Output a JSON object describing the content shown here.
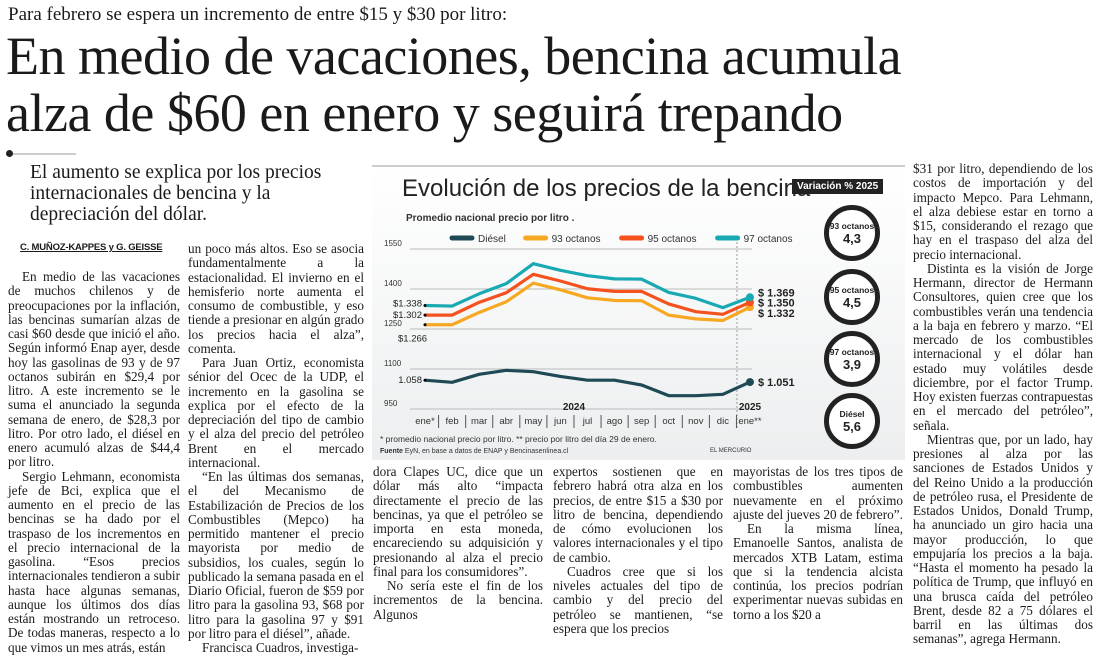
{
  "kicker": "Para febrero se espera un incremento de entre $15 y $30 por litro:",
  "headline": [
    "En medio de vacaciones, bencina acumula",
    "alza de $60 en enero y seguirá trepando"
  ],
  "deck": "El aumento se explica por los precios internacionales de bencina y la depreciación del dólar.",
  "byline": "C. MUÑOZ-KAPPES y G. GEISSE",
  "columns": {
    "col1": [
      "En medio de las vacaciones de muchos chilenos y de preocupaciones por la inflación, las bencinas sumarían alzas de casi $60 desde que inició el año. Según informó Enap ayer, desde hoy las gasolinas de 93 y de 97 octanos subirán en $29,4 por litro. A este incremento se le suma el anunciado la segunda semana de enero, de $28,3 por litro. Por otro lado, el diésel en enero acumuló alzas de $44,4 por litro.",
      "Sergio Lehmann, economista jefe de Bci, explica que el aumento en el precio de las bencinas se ha dado por el traspaso de los incrementos en el precio internacional de la gasolina. “Esos precios internacionales tendieron a subir hasta hace algunas semanas, aunque los últimos dos días están mostrando un retroceso. De todas maneras, respecto a lo que vimos un mes atrás, están"
    ],
    "col2": [
      "un poco más altos. Eso se asocia fundamentalmente a la estacionalidad. El invierno en el hemisferio norte aumenta el consumo de combustible, y eso tiende a presionar en algún grado los precios hacia el alza”, comenta.",
      "Para Juan Ortiz, economista sénior del Ocec de la UDP, el incremento en la gasolina se explica por el efecto de la depreciación del tipo de cambio y el alza del precio del petróleo Brent en el mercado internacional.",
      "“En las últimas dos semanas, el del Mecanismo de Estabilización de Precios de los Combustibles (Mepco) ha permitido mantener el precio mayorista por medio de subsidios, los cuales, según lo publicado la semana pasada en el Diario Oficial, fueron de $59 por litro para la gasolina 93, $68 por litro para la gasolina 97 y $91 por litro para el diésel”, añade.",
      "Francisca Cuadros, investiga-"
    ],
    "col3": [
      "dora Clapes UC, dice que un dólar más alto “impacta directamente el precio de las bencinas, ya que el petróleo se importa en esta moneda, encareciendo su adquisición y presionando al alza el precio final para los consumidores”.",
      "No sería este el fin de los incrementos de la bencina. Algunos"
    ],
    "col4": [
      "expertos sostienen que en febrero habrá otra alza en los precios, de entre $15 a $30 por litro de bencina, dependiendo de cómo evolucionen los valores internacionales y el tipo de cambio.",
      "Cuadros cree que si los niveles actuales del tipo de cambio y del precio del petróleo se mantienen, “se espera que los precios"
    ],
    "col5": [
      "mayoristas de los tres tipos de combustibles aumenten nuevamente en el próximo ajuste del jueves 20 de febrero”.",
      "En la misma línea, Emanoelle Santos, analista de mercados XTB Latam, estima que si la tendencia alcista continúa, los precios podrían experimentar nuevas subidas en torno a los $20 a"
    ],
    "col6": [
      "$31 por litro, dependiendo de los costos de importación y del impacto Mepco. Para Lehmann, el alza debiese estar en torno a $15, considerando el rezago que hay en el traspaso del alza del precio internacional.",
      "Distinta es la visión de Jorge Hermann, director de Hermann Consultores, quien cree que los combustibles verán una tendencia a la baja en febrero y marzo. “El mercado de los combustibles internacional y el dólar han estado muy volátiles desde diciembre, por el factor Trump. Hoy existen fuerzas contrapuestas en el mercado del petróleo”, señala.",
      "Mientras que, por un lado, hay presiones al alza por las sanciones de Estados Unidos y del Reino Unido a la producción de petróleo rusa, el Presidente de Estados Unidos, Donald Trump, ha anunciado un giro hacia una mayor producción, lo que empujaría los precios a la baja. “Hasta el momento ha pesado la política de Trump, que influyó en una brusca caída del petróleo Brent, desde 82 a 75 dólares el barril en las últimas dos semanas”, agrega Hermann."
    ]
  },
  "chart_data": {
    "type": "line",
    "title": "Evolución de los precios de la bencina",
    "subtitle": "Promedio nacional precio por litro .",
    "categories": [
      "ene*",
      "feb",
      "mar",
      "abr",
      "may",
      "jun",
      "jul",
      "ago",
      "sep",
      "oct",
      "nov",
      "dic",
      "ene**"
    ],
    "year_labels": [
      "2024",
      "2025"
    ],
    "yticks": [
      950,
      1100,
      1250,
      1400,
      1550
    ],
    "ylim": [
      950,
      1550
    ],
    "series": [
      {
        "name": "Diésel",
        "color": "#1f4a55",
        "values": [
          1058,
          1050,
          1080,
          1095,
          1090,
          1072,
          1058,
          1058,
          1040,
          1000,
          1000,
          1005,
          1051
        ]
      },
      {
        "name": "93 octanos",
        "color": "#f7a823",
        "values": [
          1266,
          1266,
          1312,
          1352,
          1422,
          1397,
          1367,
          1357,
          1356,
          1302,
          1288,
          1282,
          1332
        ]
      },
      {
        "name": "95 octanos",
        "color": "#f4511e",
        "values": [
          1302,
          1302,
          1350,
          1386,
          1455,
          1430,
          1401,
          1391,
          1391,
          1344,
          1315,
          1305,
          1350
        ]
      },
      {
        "name": "97 octanos",
        "color": "#19a9b3",
        "values": [
          1338,
          1336,
          1382,
          1420,
          1495,
          1470,
          1450,
          1438,
          1437,
          1387,
          1365,
          1330,
          1369
        ]
      }
    ],
    "start_labels": [
      "$1.338",
      "$1.302",
      "$1.266",
      "1.058"
    ],
    "end_labels": [
      "$ 1.369",
      "$ 1.350",
      "$ 1.332",
      "$ 1.051"
    ],
    "footnote": "* promedio nacional precio por litro. ** precio por litro del día 29 de enero.",
    "source_label": "Fuente",
    "source": "EyN, en base a datos de ENAP y Bencinasenlinea.cl",
    "credit": "EL MERCURIO",
    "variation_title": "Variación % 2025",
    "variations": [
      {
        "name": "93 octanos",
        "value": "4,3",
        "color": "#f7a823"
      },
      {
        "name": "95 octanos",
        "value": "4,5",
        "color": "#f4511e"
      },
      {
        "name": "97 octanos",
        "value": "3,9",
        "color": "#19a9b3"
      },
      {
        "name": "Diésel",
        "value": "5,6",
        "color": "#1f4a55"
      }
    ]
  }
}
